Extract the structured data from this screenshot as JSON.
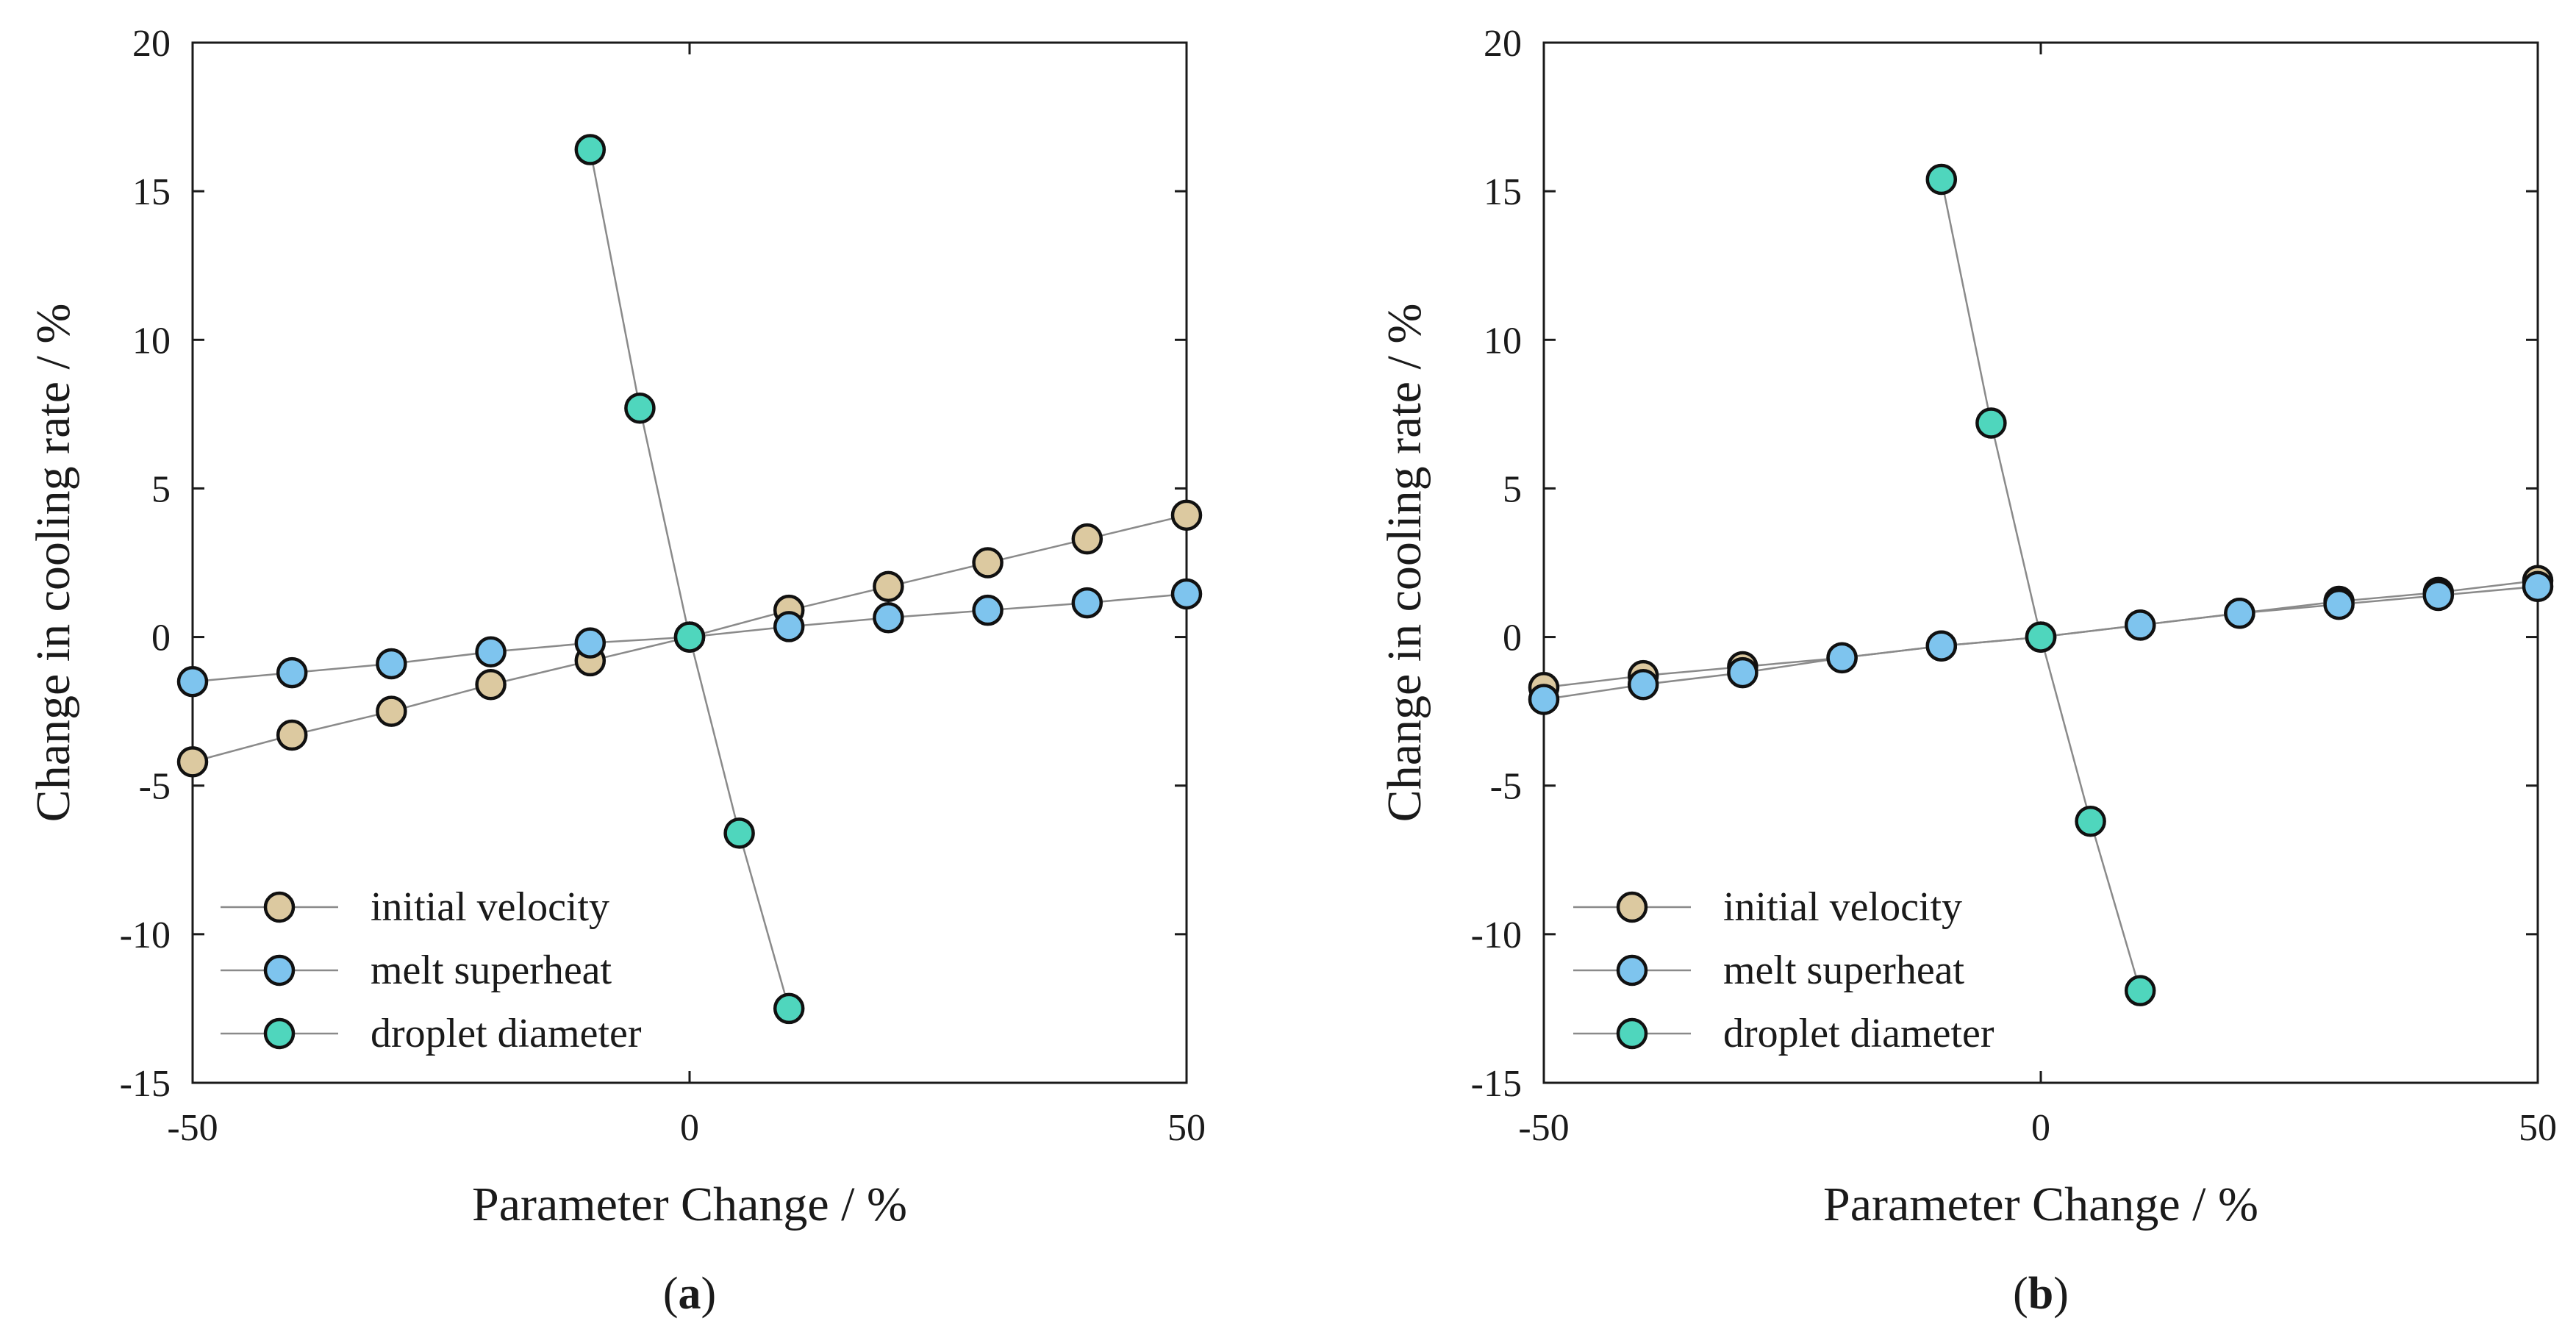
{
  "colors": {
    "initial_velocity": "#dcc9a0",
    "melt_superheat": "#7ec4ee",
    "droplet_diameter": "#4fd6bd",
    "line": "#8a8a8a",
    "axis": "#1a1a1a"
  },
  "chart_data": [
    {
      "type": "scatter",
      "panel_label": "a",
      "title": "",
      "xlabel": "Parameter Change / %",
      "ylabel": "Change in cooling rate / %",
      "xlim": [
        -50,
        50
      ],
      "ylim": [
        -15,
        20
      ],
      "xticks": [
        -50,
        0,
        50
      ],
      "yticks": [
        -15,
        -10,
        -5,
        0,
        5,
        10,
        15,
        20
      ],
      "grid": false,
      "legend_position": "bottom-left",
      "series": [
        {
          "key": "initial_velocity",
          "name": "initial velocity",
          "x": [
            -50,
            -40,
            -30,
            -20,
            -10,
            0,
            10,
            20,
            30,
            40,
            50
          ],
          "y": [
            -4.2,
            -3.3,
            -2.5,
            -1.6,
            -0.8,
            0,
            0.9,
            1.7,
            2.5,
            3.3,
            4.1
          ]
        },
        {
          "key": "melt_superheat",
          "name": "melt superheat",
          "x": [
            -50,
            -40,
            -30,
            -20,
            -10,
            0,
            10,
            20,
            30,
            40,
            50
          ],
          "y": [
            -1.5,
            -1.2,
            -0.9,
            -0.5,
            -0.2,
            0,
            0.35,
            0.65,
            0.9,
            1.15,
            1.45
          ]
        },
        {
          "key": "droplet_diameter",
          "name": "droplet diameter",
          "x": [
            -10,
            -5,
            0,
            5,
            10
          ],
          "y": [
            16.4,
            7.7,
            0,
            -6.6,
            -12.5
          ]
        }
      ]
    },
    {
      "type": "scatter",
      "panel_label": "b",
      "title": "",
      "xlabel": "Parameter Change / %",
      "ylabel": "Change in cooling rate / %",
      "xlim": [
        -50,
        50
      ],
      "ylim": [
        -15,
        20
      ],
      "xticks": [
        -50,
        0,
        50
      ],
      "yticks": [
        -15,
        -10,
        -5,
        0,
        5,
        10,
        15,
        20
      ],
      "grid": false,
      "legend_position": "bottom-left",
      "series": [
        {
          "key": "initial_velocity",
          "name": "initial velocity",
          "x": [
            -50,
            -40,
            -30,
            -20,
            -10,
            0,
            10,
            20,
            30,
            40,
            50
          ],
          "y": [
            -1.7,
            -1.3,
            -1.0,
            -0.7,
            -0.3,
            0,
            0.4,
            0.8,
            1.2,
            1.5,
            1.9
          ]
        },
        {
          "key": "melt_superheat",
          "name": "melt superheat",
          "x": [
            -50,
            -40,
            -30,
            -20,
            -10,
            0,
            10,
            20,
            30,
            40,
            50
          ],
          "y": [
            -2.1,
            -1.6,
            -1.2,
            -0.7,
            -0.3,
            0,
            0.4,
            0.8,
            1.1,
            1.4,
            1.7
          ]
        },
        {
          "key": "droplet_diameter",
          "name": "droplet diameter",
          "x": [
            -10,
            -5,
            0,
            5,
            10
          ],
          "y": [
            15.4,
            7.2,
            0,
            -6.2,
            -11.9
          ]
        }
      ]
    }
  ]
}
